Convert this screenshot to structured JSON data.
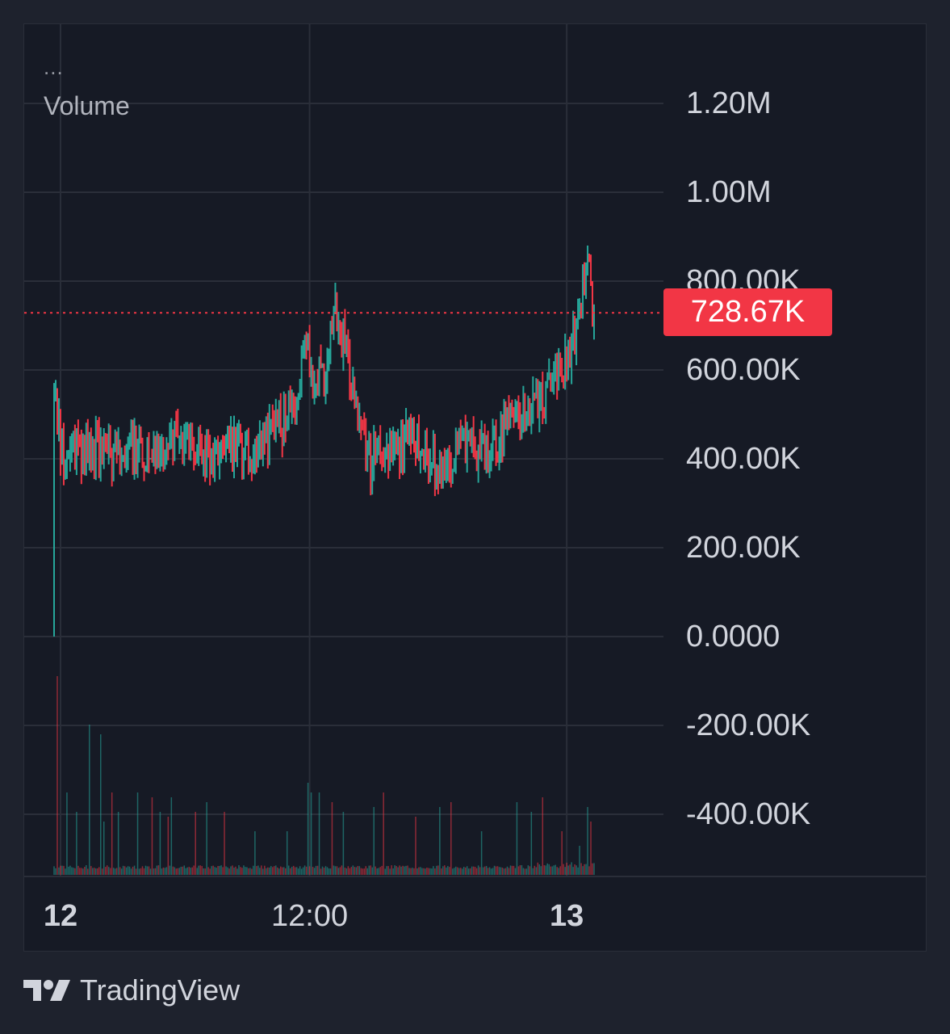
{
  "legend": {
    "menu_dots": "...",
    "indicator_name": "Volume"
  },
  "price_axis": {
    "labels": [
      "1.20M",
      "1.00M",
      "800.00K",
      "600.00K",
      "400.00K",
      "200.00K",
      "0.0000",
      "-200.00K",
      "-400.00K"
    ]
  },
  "time_axis": {
    "labels": [
      "12",
      "12:00",
      "13"
    ],
    "bold": [
      true,
      false,
      true
    ]
  },
  "last_value": {
    "label": "728.67K",
    "value": 728670,
    "color": "#f23645"
  },
  "brand": {
    "name": "TradingView",
    "logo_icon": "tradingview-logo-icon"
  },
  "colors": {
    "up": "#26a69a",
    "down": "#f23645",
    "background": "#161a25",
    "grid": "#2a2e39",
    "text": "#d1d4dc"
  },
  "chart_data": {
    "type": "bar",
    "title": "",
    "price_scale": {
      "ylim": [
        -540000,
        1200000
      ],
      "ticks": [
        1200000,
        1000000,
        800000,
        600000,
        400000,
        200000,
        0,
        -200000,
        -400000
      ]
    },
    "x_range": [
      0,
      336
    ],
    "grid": true,
    "candles": {
      "key_points": [
        [
          0,
          545000,
          0,
          550000,
          300000
        ],
        [
          1,
          550000,
          100000,
          550000,
          320000
        ],
        [
          4,
          420000,
          0,
          540000,
          330000
        ],
        [
          15,
          420000,
          20000,
          490000,
          340000
        ],
        [
          30,
          420000,
          10000,
          520000,
          340000
        ],
        [
          40,
          410000,
          0,
          480000,
          280000
        ],
        [
          45,
          430000,
          0,
          620000,
          300000
        ],
        [
          60,
          410000,
          5000,
          510000,
          360000
        ],
        [
          80,
          440000,
          0,
          530000,
          350000
        ],
        [
          90,
          420000,
          0,
          610000,
          330000
        ],
        [
          100,
          400000,
          0,
          470000,
          330000
        ],
        [
          110,
          420000,
          5000,
          470000,
          350000
        ],
        [
          125,
          420000,
          0,
          480000,
          350000
        ],
        [
          140,
          470000,
          0,
          510000,
          410000
        ],
        [
          150,
          520000,
          10000,
          580000,
          440000
        ],
        [
          157,
          660000,
          10000,
          760000,
          540000
        ],
        [
          162,
          560000,
          10000,
          690000,
          480000
        ],
        [
          170,
          620000,
          10000,
          690000,
          520000
        ],
        [
          175,
          720000,
          10000,
          820000,
          600000
        ],
        [
          180,
          660000,
          0,
          740000,
          580000
        ],
        [
          188,
          540000,
          0,
          620000,
          470000
        ],
        [
          197,
          390000,
          5000,
          480000,
          320000
        ],
        [
          207,
          430000,
          0,
          520000,
          360000
        ],
        [
          215,
          420000,
          0,
          510000,
          350000
        ],
        [
          223,
          460000,
          0,
          520000,
          390000
        ],
        [
          233,
          410000,
          0,
          470000,
          340000
        ],
        [
          242,
          360000,
          0,
          420000,
          310000
        ],
        [
          252,
          450000,
          0,
          500000,
          400000
        ],
        [
          262,
          420000,
          5000,
          460000,
          380000
        ],
        [
          272,
          420000,
          0,
          470000,
          380000
        ],
        [
          285,
          510000,
          10000,
          580000,
          460000
        ],
        [
          300,
          520000,
          0,
          590000,
          470000
        ],
        [
          310,
          580000,
          5000,
          660000,
          510000
        ],
        [
          318,
          620000,
          5000,
          690000,
          560000
        ],
        [
          326,
          700000,
          10000,
          770000,
          640000
        ],
        [
          332,
          880000,
          10000,
          880000,
          720000
        ],
        [
          335,
          728670,
          5000,
          860000,
          700000
        ]
      ],
      "spikes": [
        [
          2,
          40
        ],
        [
          8,
          16
        ],
        [
          14,
          12
        ],
        [
          20,
          1.0
        ],
        [
          22,
          30
        ],
        [
          29,
          28
        ],
        [
          31,
          10
        ],
        [
          36,
          16
        ],
        [
          40,
          12
        ],
        [
          52,
          16
        ],
        [
          61,
          15
        ],
        [
          66,
          12
        ],
        [
          71,
          11
        ],
        [
          73,
          15
        ],
        [
          88,
          12
        ],
        [
          95,
          14
        ],
        [
          106,
          12
        ],
        [
          125,
          8
        ],
        [
          145,
          8
        ],
        [
          158,
          18
        ],
        [
          160,
          16
        ],
        [
          165,
          16
        ],
        [
          173,
          14
        ],
        [
          180,
          12
        ],
        [
          199,
          13
        ],
        [
          205,
          16
        ],
        [
          225,
          11
        ],
        [
          240,
          13
        ],
        [
          247,
          14
        ],
        [
          266,
          8
        ],
        [
          288,
          14
        ],
        [
          297,
          12
        ],
        [
          304,
          15
        ],
        [
          316,
          8
        ],
        [
          327,
          5
        ],
        [
          332,
          13
        ],
        [
          334,
          10
        ]
      ]
    },
    "volume": {
      "overlay_range": [
        0,
        4
      ],
      "units": "relative"
    },
    "last_value_line": 728670
  }
}
